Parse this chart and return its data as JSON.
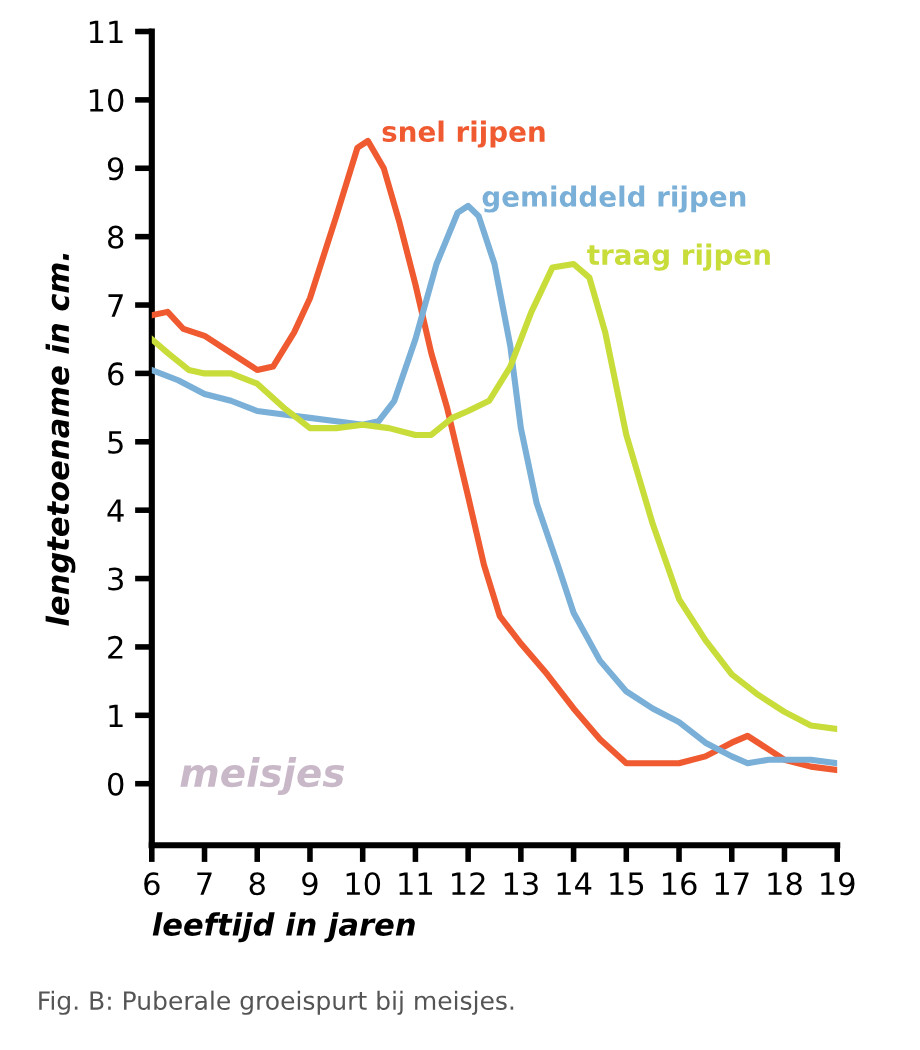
{
  "chart_data": {
    "type": "line",
    "xlabel": "leeftijd in jaren",
    "ylabel": "lengtetoename in cm.",
    "xlim": [
      6,
      19
    ],
    "xticks": [
      6,
      7,
      8,
      9,
      10,
      11,
      12,
      13,
      14,
      15,
      16,
      17,
      18,
      19
    ],
    "ylim": [
      -0.9,
      11
    ],
    "yticks": [
      0,
      1,
      2,
      3,
      4,
      5,
      6,
      7,
      8,
      9,
      10,
      11
    ],
    "grid": false,
    "legend": false,
    "marker": "none",
    "line_style": "solid",
    "series": [
      {
        "name": "snel rijpen",
        "color": "#f05a30",
        "x": [
          6,
          6.3,
          6.6,
          7,
          7.5,
          8,
          8.3,
          8.7,
          9,
          9.5,
          9.9,
          10.1,
          10.4,
          10.7,
          11,
          11.3,
          11.6,
          12,
          12.3,
          12.6,
          13,
          13.5,
          14,
          14.5,
          15,
          15.5,
          16,
          16.5,
          17,
          17.3,
          17.6,
          18,
          18.5,
          19
        ],
        "values": [
          6.85,
          6.9,
          6.65,
          6.55,
          6.3,
          6.05,
          6.1,
          6.6,
          7.1,
          8.3,
          9.3,
          9.4,
          9.0,
          8.2,
          7.3,
          6.3,
          5.5,
          4.2,
          3.2,
          2.45,
          2.05,
          1.6,
          1.1,
          0.65,
          0.3,
          0.3,
          0.3,
          0.4,
          0.6,
          0.7,
          0.55,
          0.35,
          0.25,
          0.2
        ]
      },
      {
        "name": "gemiddeld rijpen",
        "color": "#7ab0d8",
        "x": [
          6,
          6.5,
          7,
          7.5,
          8,
          8.5,
          9,
          9.5,
          10,
          10.3,
          10.6,
          11,
          11.4,
          11.8,
          12,
          12.2,
          12.5,
          12.8,
          13,
          13.3,
          13.7,
          14,
          14.5,
          15,
          15.5,
          16,
          16.5,
          17,
          17.3,
          17.7,
          18,
          18.5,
          19
        ],
        "values": [
          6.05,
          5.9,
          5.7,
          5.6,
          5.45,
          5.4,
          5.35,
          5.3,
          5.25,
          5.3,
          5.6,
          6.5,
          7.6,
          8.35,
          8.45,
          8.3,
          7.6,
          6.4,
          5.2,
          4.1,
          3.2,
          2.5,
          1.8,
          1.35,
          1.1,
          0.9,
          0.6,
          0.4,
          0.3,
          0.35,
          0.35,
          0.35,
          0.3
        ]
      },
      {
        "name": "traag rijpen",
        "color": "#c8dc3a",
        "x": [
          6,
          6.3,
          6.7,
          7,
          7.5,
          8,
          8.5,
          9,
          9.5,
          10,
          10.5,
          11,
          11.3,
          11.7,
          12,
          12.4,
          12.8,
          13.2,
          13.6,
          14,
          14.3,
          14.6,
          15,
          15.5,
          16,
          16.5,
          17,
          17.5,
          18,
          18.5,
          19
        ],
        "values": [
          6.5,
          6.3,
          6.05,
          6.0,
          6.0,
          5.85,
          5.5,
          5.2,
          5.2,
          5.25,
          5.2,
          5.1,
          5.1,
          5.35,
          5.45,
          5.6,
          6.1,
          6.9,
          7.55,
          7.6,
          7.4,
          6.6,
          5.1,
          3.8,
          2.7,
          2.1,
          1.6,
          1.3,
          1.05,
          0.85,
          0.8
        ]
      }
    ],
    "annotations": [
      "meisjes",
      "Fig. B: Puberale groeispurt bij meisjes."
    ]
  }
}
